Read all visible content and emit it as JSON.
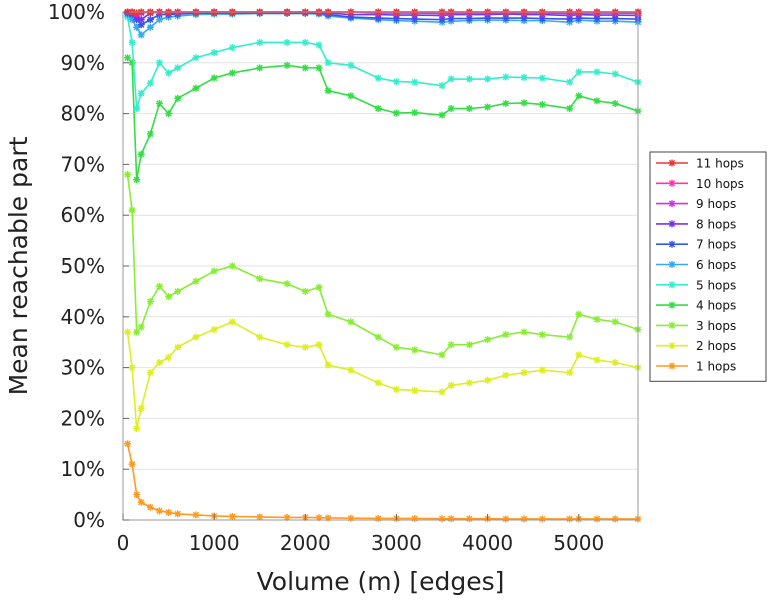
{
  "chart_data": {
    "type": "line",
    "xlabel": "Volume (m) [edges]",
    "ylabel": "Mean reachable part",
    "xlim": [
      0,
      5650
    ],
    "ylim": [
      0,
      100
    ],
    "x_ticks": [
      0,
      1000,
      2000,
      3000,
      4000,
      5000
    ],
    "y_ticks": [
      0,
      10,
      20,
      30,
      40,
      50,
      60,
      70,
      80,
      90,
      100
    ],
    "y_tick_labels": [
      "0%",
      "10%",
      "20%",
      "30%",
      "40%",
      "50%",
      "60%",
      "70%",
      "80%",
      "90%",
      "100%"
    ],
    "grid": "horizontal",
    "legend_position": "right",
    "x": [
      50,
      100,
      150,
      200,
      300,
      400,
      500,
      600,
      800,
      1000,
      1200,
      1500,
      1800,
      2000,
      2150,
      2250,
      2500,
      2800,
      3000,
      3200,
      3500,
      3600,
      3800,
      4000,
      4200,
      4400,
      4600,
      4900,
      5000,
      5200,
      5400,
      5650
    ],
    "series": [
      {
        "name": "11 hops",
        "color": "#ee3333",
        "values": [
          100,
          100,
          99.8,
          100,
          100,
          100,
          100,
          100,
          100,
          100,
          100,
          100,
          100,
          100,
          100,
          100,
          100,
          100,
          100,
          100,
          100,
          100,
          100,
          100,
          100,
          100,
          100,
          100,
          100,
          100,
          100,
          100
        ]
      },
      {
        "name": "10 hops",
        "color": "#ff33aa",
        "values": [
          100,
          100,
          99.8,
          100,
          100,
          100,
          100,
          100,
          100,
          100,
          100,
          100,
          100,
          100,
          100,
          100,
          100,
          100,
          100,
          100,
          100,
          100,
          100,
          100,
          100,
          100,
          100,
          100,
          100,
          100,
          100,
          100
        ]
      },
      {
        "name": "9 hops",
        "color": "#cc33ee",
        "values": [
          100,
          100,
          99.6,
          99.8,
          100,
          100,
          100,
          100,
          100,
          100,
          100,
          100,
          100,
          100,
          100,
          100,
          100,
          99.8,
          99.8,
          99.8,
          99.7,
          99.8,
          99.8,
          99.8,
          99.8,
          99.8,
          99.8,
          99.7,
          99.8,
          99.8,
          99.8,
          99.7
        ]
      },
      {
        "name": "8 hops",
        "color": "#7733ee",
        "values": [
          100,
          100,
          99,
          98.5,
          99.8,
          100,
          99.8,
          99.8,
          100,
          100,
          100,
          100,
          100,
          100,
          100,
          99.8,
          99.5,
          99.5,
          99.4,
          99.4,
          99.3,
          99.5,
          99.5,
          99.5,
          99.6,
          99.5,
          99.5,
          99.3,
          99.5,
          99.4,
          99.4,
          99.3
        ]
      },
      {
        "name": "7 hops",
        "color": "#3355ee",
        "values": [
          99.8,
          99.5,
          98.5,
          97.5,
          98.5,
          99.5,
          99.5,
          99.6,
          99.8,
          99.8,
          99.8,
          99.8,
          99.8,
          99.8,
          99.8,
          99.5,
          99,
          98.8,
          98.7,
          98.6,
          98.5,
          98.7,
          98.7,
          98.8,
          98.8,
          98.8,
          98.7,
          98.6,
          98.8,
          98.7,
          98.7,
          98.6
        ]
      },
      {
        "name": "6 hops",
        "color": "#33aaee",
        "values": [
          99.5,
          98.5,
          97,
          95.5,
          97,
          98.5,
          99,
          99.2,
          99.5,
          99.6,
          99.6,
          99.7,
          99.7,
          99.7,
          99.6,
          99.2,
          98.8,
          98.5,
          98.3,
          98.2,
          98,
          98.2,
          98.3,
          98.4,
          98.4,
          98.3,
          98.3,
          98,
          98.4,
          98.2,
          98.2,
          98
        ]
      },
      {
        "name": "5 hops",
        "color": "#33eecc",
        "values": [
          99,
          94,
          81,
          84,
          86,
          90,
          88,
          89,
          91,
          92,
          93,
          94,
          94,
          94,
          93.5,
          90,
          89.5,
          87,
          86.3,
          86.2,
          85.5,
          86.8,
          86.8,
          86.8,
          87.2,
          87.1,
          87,
          86.2,
          88.2,
          88.2,
          87.8,
          86.2
        ]
      },
      {
        "name": "4 hops",
        "color": "#33dd44",
        "values": [
          91,
          90,
          67,
          72,
          76,
          82,
          80,
          83,
          85,
          87,
          88,
          89,
          89.5,
          89,
          89,
          84.5,
          83.5,
          81,
          80.1,
          80.2,
          79.7,
          81,
          81,
          81.3,
          82,
          82.1,
          81.8,
          81,
          83.5,
          82.5,
          82,
          80.5
        ]
      },
      {
        "name": "3 hops",
        "color": "#88ee33",
        "values": [
          68,
          61,
          37,
          38,
          43,
          46,
          44,
          45,
          47,
          49,
          50,
          47.5,
          46.5,
          45,
          45.8,
          40.5,
          39,
          36,
          34,
          33.5,
          32.5,
          34.5,
          34.5,
          35.5,
          36.5,
          37,
          36.5,
          36,
          40.5,
          39.5,
          39,
          37.5
        ]
      },
      {
        "name": "2 hops",
        "color": "#ddee22",
        "values": [
          37,
          30,
          18,
          22,
          29,
          31,
          32,
          34,
          36,
          37.5,
          39,
          36,
          34.5,
          34,
          34.5,
          30.5,
          29.5,
          27,
          25.7,
          25.5,
          25.2,
          26.5,
          27,
          27.5,
          28.5,
          29,
          29.5,
          29,
          32.5,
          31.5,
          31,
          30
        ]
      },
      {
        "name": "1 hops",
        "color": "#ff9922",
        "values": [
          15,
          11,
          5,
          3.5,
          2.5,
          1.8,
          1.5,
          1.2,
          1,
          0.8,
          0.7,
          0.6,
          0.5,
          0.5,
          0.45,
          0.4,
          0.35,
          0.3,
          0.3,
          0.3,
          0.25,
          0.25,
          0.25,
          0.25,
          0.2,
          0.2,
          0.2,
          0.2,
          0.2,
          0.2,
          0.2,
          0.2
        ]
      }
    ]
  }
}
